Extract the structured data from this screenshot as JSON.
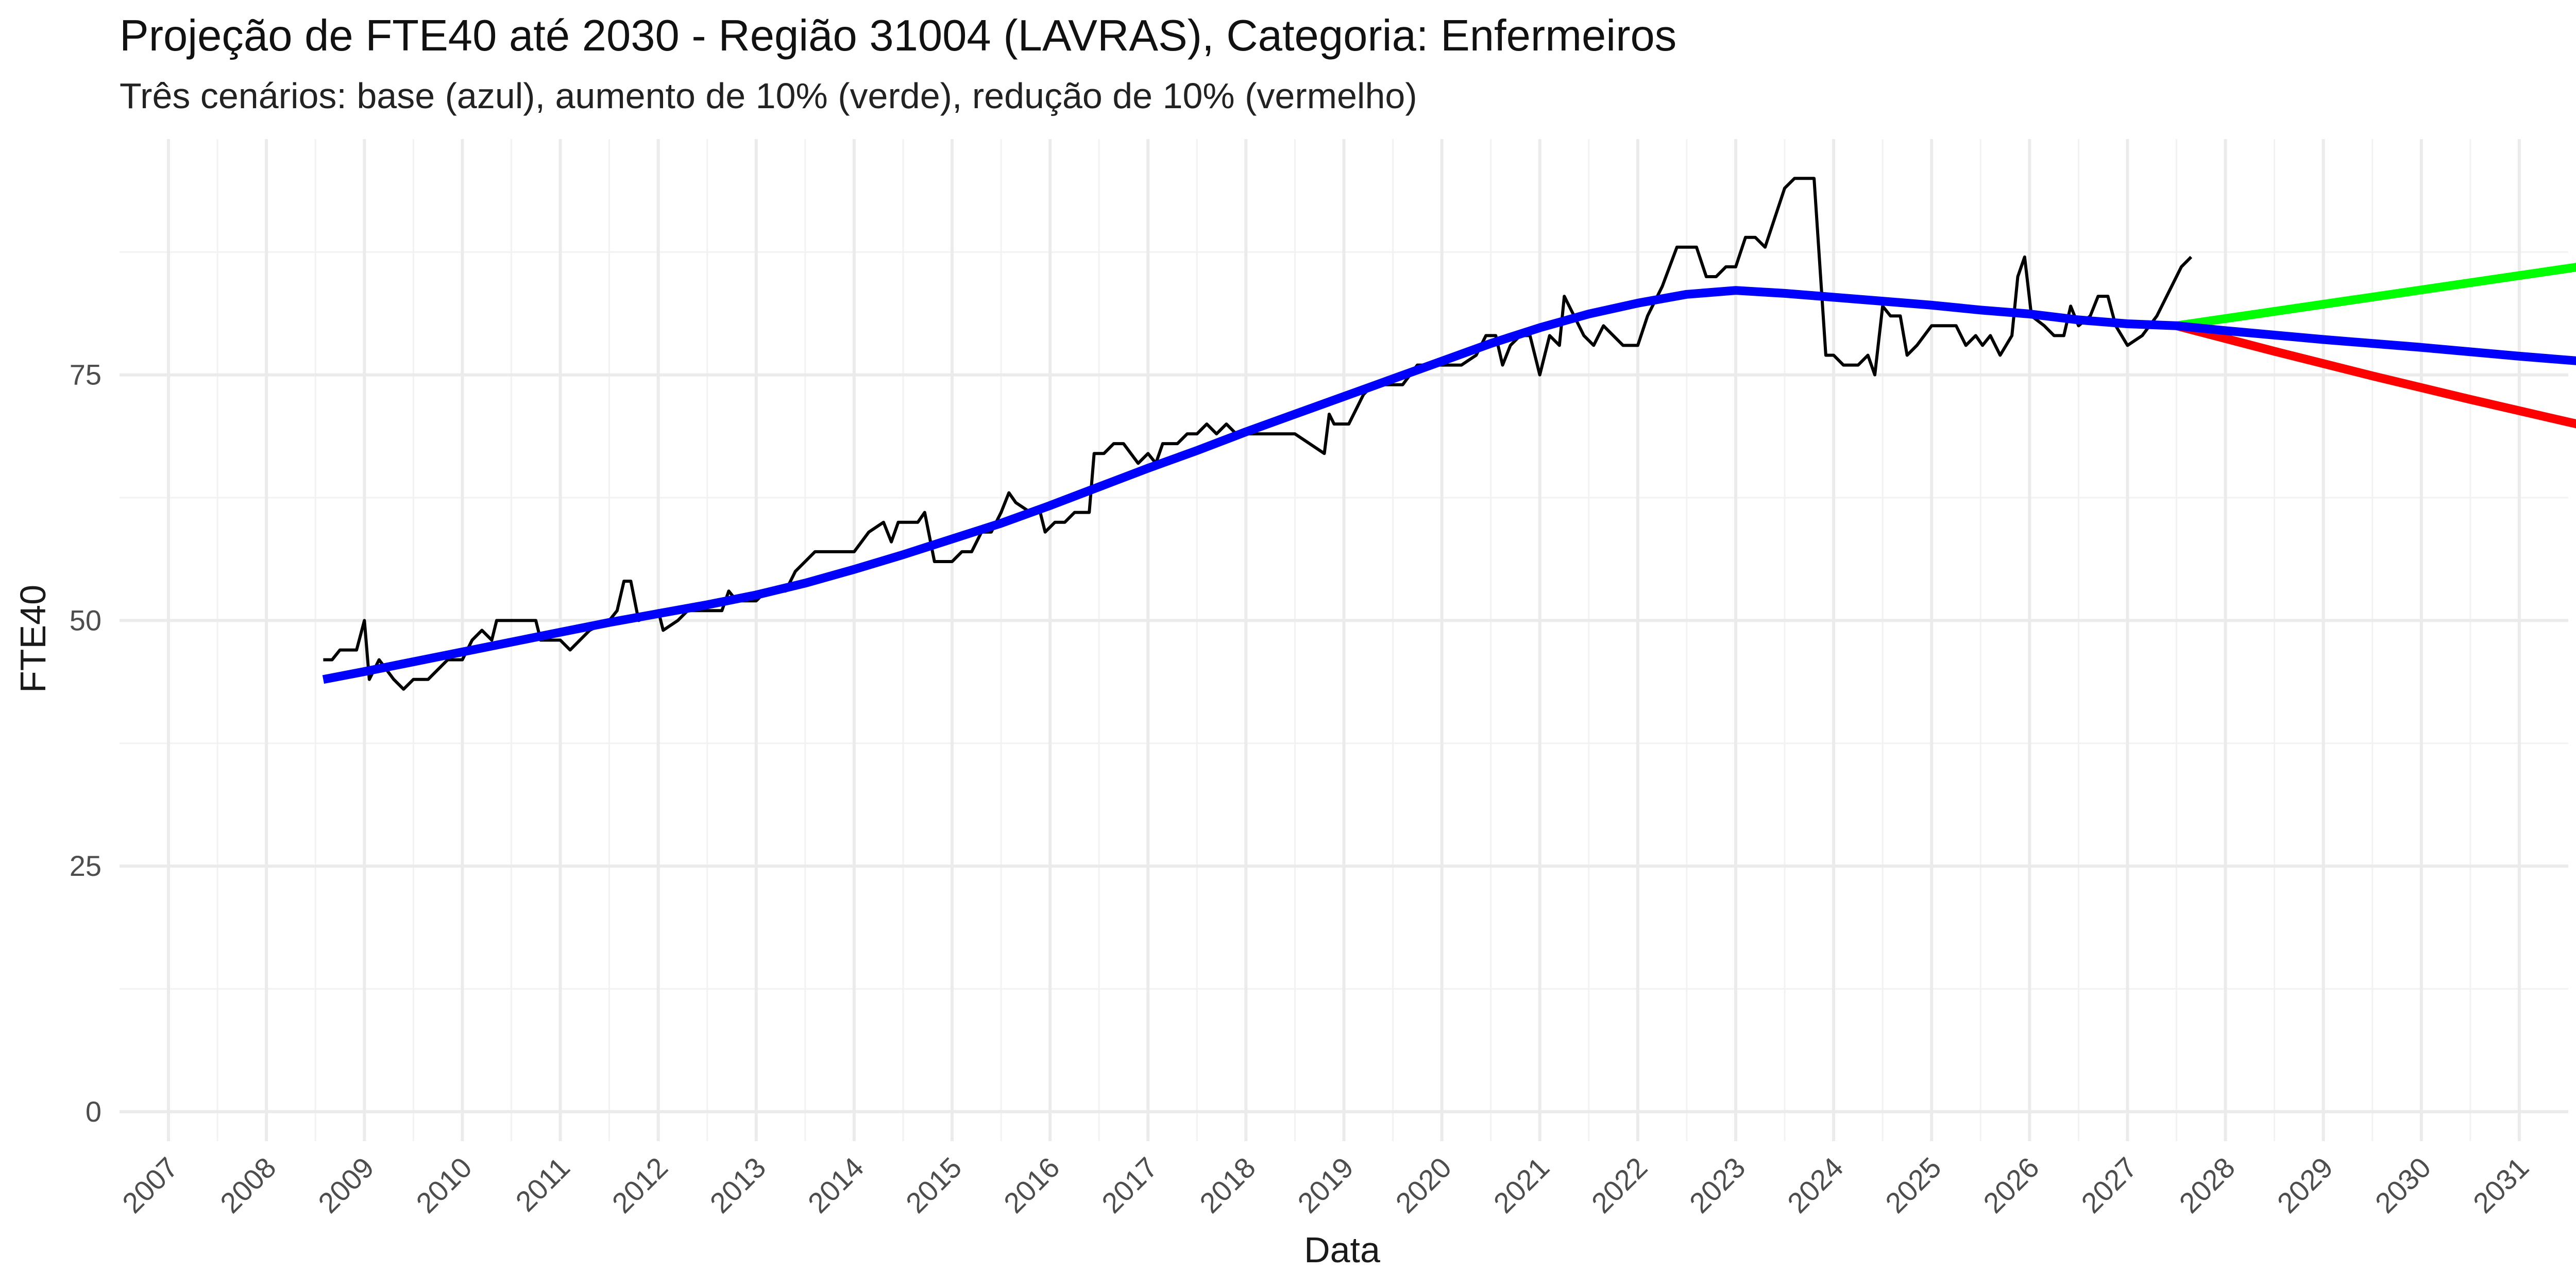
{
  "chart_data": {
    "type": "line",
    "title": "Projeção de FTE40 até 2030 - Região 31004 (LAVRAS), Categoria: Enfermeiros",
    "subtitle": "Três cenários: base (azul), aumento de 10% (verde), redução de 10% (vermelho)",
    "xlabel": "Data",
    "ylabel": "FTE40",
    "xlim": [
      2006.5,
      2031.5
    ],
    "ylim": [
      -3,
      99
    ],
    "x_ticks": [
      2007,
      2008,
      2009,
      2010,
      2011,
      2012,
      2013,
      2014,
      2015,
      2016,
      2017,
      2018,
      2019,
      2020,
      2021,
      2022,
      2023,
      2024,
      2025,
      2026,
      2027,
      2028,
      2029,
      2030,
      2031
    ],
    "y_ticks": [
      0,
      25,
      50,
      75
    ],
    "grid": true,
    "legend": "none",
    "series": [
      {
        "key": "observed",
        "color": "#000000",
        "points": [
          [
            2008.58,
            46
          ],
          [
            2008.67,
            46
          ],
          [
            2008.75,
            47
          ],
          [
            2008.92,
            47
          ],
          [
            2009.0,
            50
          ],
          [
            2009.05,
            44
          ],
          [
            2009.15,
            46
          ],
          [
            2009.3,
            44
          ],
          [
            2009.4,
            43
          ],
          [
            2009.5,
            44
          ],
          [
            2009.65,
            44
          ],
          [
            2009.85,
            46
          ],
          [
            2010.0,
            46
          ],
          [
            2010.1,
            48
          ],
          [
            2010.2,
            49
          ],
          [
            2010.3,
            48
          ],
          [
            2010.35,
            50
          ],
          [
            2010.75,
            50
          ],
          [
            2010.8,
            48
          ],
          [
            2011.0,
            48
          ],
          [
            2011.1,
            47
          ],
          [
            2011.3,
            49
          ],
          [
            2011.5,
            50
          ],
          [
            2011.58,
            51
          ],
          [
            2011.65,
            54
          ],
          [
            2011.72,
            54
          ],
          [
            2011.8,
            50
          ],
          [
            2012.0,
            51
          ],
          [
            2012.05,
            49
          ],
          [
            2012.2,
            50
          ],
          [
            2012.3,
            51
          ],
          [
            2012.55,
            51
          ],
          [
            2012.65,
            51
          ],
          [
            2012.72,
            53
          ],
          [
            2012.8,
            52
          ],
          [
            2013.0,
            52
          ],
          [
            2013.1,
            53
          ],
          [
            2013.3,
            53
          ],
          [
            2013.4,
            55
          ],
          [
            2013.5,
            56
          ],
          [
            2013.6,
            57
          ],
          [
            2013.9,
            57
          ],
          [
            2014.0,
            57
          ],
          [
            2014.15,
            59
          ],
          [
            2014.3,
            60
          ],
          [
            2014.38,
            58
          ],
          [
            2014.45,
            60
          ],
          [
            2014.65,
            60
          ],
          [
            2014.72,
            61
          ],
          [
            2014.82,
            56
          ],
          [
            2015.0,
            56
          ],
          [
            2015.1,
            57
          ],
          [
            2015.2,
            57
          ],
          [
            2015.3,
            59
          ],
          [
            2015.4,
            59
          ],
          [
            2015.5,
            61
          ],
          [
            2015.58,
            63
          ],
          [
            2015.65,
            62
          ],
          [
            2015.8,
            61
          ],
          [
            2015.9,
            61
          ],
          [
            2015.95,
            59
          ],
          [
            2016.05,
            60
          ],
          [
            2016.15,
            60
          ],
          [
            2016.25,
            61
          ],
          [
            2016.4,
            61
          ],
          [
            2016.45,
            67
          ],
          [
            2016.55,
            67
          ],
          [
            2016.65,
            68
          ],
          [
            2016.75,
            68
          ],
          [
            2016.9,
            66
          ],
          [
            2017.0,
            67
          ],
          [
            2017.08,
            66
          ],
          [
            2017.15,
            68
          ],
          [
            2017.3,
            68
          ],
          [
            2017.4,
            69
          ],
          [
            2017.5,
            69
          ],
          [
            2017.6,
            70
          ],
          [
            2017.7,
            69
          ],
          [
            2017.8,
            70
          ],
          [
            2017.9,
            69
          ],
          [
            2018.0,
            69
          ],
          [
            2018.5,
            69
          ],
          [
            2018.8,
            67
          ],
          [
            2018.85,
            71
          ],
          [
            2018.9,
            70
          ],
          [
            2019.05,
            70
          ],
          [
            2019.2,
            73
          ],
          [
            2019.3,
            74
          ],
          [
            2019.45,
            74
          ],
          [
            2019.6,
            74
          ],
          [
            2019.75,
            76
          ],
          [
            2019.95,
            76
          ],
          [
            2020.1,
            76
          ],
          [
            2020.2,
            76
          ],
          [
            2020.35,
            77
          ],
          [
            2020.45,
            79
          ],
          [
            2020.55,
            79
          ],
          [
            2020.62,
            76
          ],
          [
            2020.7,
            78
          ],
          [
            2020.8,
            79
          ],
          [
            2020.9,
            79
          ],
          [
            2021.0,
            75
          ],
          [
            2021.1,
            79
          ],
          [
            2021.2,
            78
          ],
          [
            2021.25,
            83
          ],
          [
            2021.35,
            81
          ],
          [
            2021.45,
            79
          ],
          [
            2021.55,
            78
          ],
          [
            2021.65,
            80
          ],
          [
            2021.75,
            79
          ],
          [
            2021.85,
            78
          ],
          [
            2022.0,
            78
          ],
          [
            2022.1,
            81
          ],
          [
            2022.25,
            84
          ],
          [
            2022.4,
            88
          ],
          [
            2022.5,
            88
          ],
          [
            2022.6,
            88
          ],
          [
            2022.7,
            85
          ],
          [
            2022.8,
            85
          ],
          [
            2022.9,
            86
          ],
          [
            2023.0,
            86
          ],
          [
            2023.1,
            89
          ],
          [
            2023.2,
            89
          ],
          [
            2023.3,
            88
          ],
          [
            2023.4,
            91
          ],
          [
            2023.5,
            94
          ],
          [
            2023.6,
            95
          ],
          [
            2023.8,
            95
          ],
          [
            2023.92,
            77
          ],
          [
            2024.0,
            77
          ],
          [
            2024.1,
            76
          ],
          [
            2024.25,
            76
          ],
          [
            2024.35,
            77
          ],
          [
            2024.42,
            75
          ],
          [
            2024.5,
            82
          ],
          [
            2024.58,
            81
          ],
          [
            2024.68,
            81
          ],
          [
            2024.75,
            77
          ],
          [
            2024.85,
            78
          ],
          [
            2025.0,
            80
          ],
          [
            2025.25,
            80
          ],
          [
            2025.35,
            78
          ],
          [
            2025.45,
            79
          ],
          [
            2025.52,
            78
          ],
          [
            2025.6,
            79
          ],
          [
            2025.7,
            77
          ],
          [
            2025.82,
            79
          ],
          [
            2025.88,
            85
          ],
          [
            2025.95,
            87
          ],
          [
            2026.02,
            81
          ],
          [
            2026.15,
            80
          ],
          [
            2026.25,
            79
          ],
          [
            2026.35,
            79
          ],
          [
            2026.42,
            82
          ],
          [
            2026.5,
            80
          ],
          [
            2026.62,
            81
          ],
          [
            2026.7,
            83
          ],
          [
            2026.8,
            83
          ],
          [
            2026.88,
            80
          ],
          [
            2027.0,
            78
          ],
          [
            2027.15,
            79
          ],
          [
            2027.3,
            81
          ],
          [
            2027.45,
            84
          ],
          [
            2027.55,
            86
          ],
          [
            2027.65,
            87
          ]
        ]
      },
      {
        "key": "base",
        "color": "#0000ff",
        "points": [
          [
            2008.58,
            44
          ],
          [
            2009.0,
            44.8
          ],
          [
            2009.5,
            45.8
          ],
          [
            2010.0,
            46.8
          ],
          [
            2010.5,
            47.8
          ],
          [
            2011.0,
            48.8
          ],
          [
            2011.5,
            49.8
          ],
          [
            2012.0,
            50.7
          ],
          [
            2012.5,
            51.6
          ],
          [
            2013.0,
            52.6
          ],
          [
            2013.5,
            53.8
          ],
          [
            2014.0,
            55.2
          ],
          [
            2014.5,
            56.7
          ],
          [
            2015.0,
            58.3
          ],
          [
            2015.5,
            59.9
          ],
          [
            2016.0,
            61.7
          ],
          [
            2016.5,
            63.6
          ],
          [
            2017.0,
            65.5
          ],
          [
            2017.5,
            67.3
          ],
          [
            2018.0,
            69.2
          ],
          [
            2018.5,
            71.0
          ],
          [
            2019.0,
            72.8
          ],
          [
            2019.5,
            74.6
          ],
          [
            2020.0,
            76.4
          ],
          [
            2020.5,
            78.2
          ],
          [
            2021.0,
            79.8
          ],
          [
            2021.5,
            81.2
          ],
          [
            2022.0,
            82.3
          ],
          [
            2022.5,
            83.2
          ],
          [
            2023.0,
            83.6
          ],
          [
            2023.5,
            83.3
          ],
          [
            2024.0,
            82.9
          ],
          [
            2024.5,
            82.5
          ],
          [
            2025.0,
            82.1
          ],
          [
            2025.5,
            81.6
          ],
          [
            2026.0,
            81.2
          ],
          [
            2026.5,
            80.6
          ],
          [
            2027.0,
            80.2
          ],
          [
            2027.5,
            80.0
          ],
          [
            2028.0,
            79.5
          ],
          [
            2029.0,
            78.6
          ],
          [
            2030.0,
            77.8
          ],
          [
            2031.0,
            76.9
          ],
          [
            2032.0,
            76.1
          ],
          [
            2032.5,
            75.7
          ]
        ]
      },
      {
        "key": "increase",
        "color": "#00ff00",
        "points": [
          [
            2027.5,
            80.0
          ],
          [
            2032.5,
            87.3
          ]
        ]
      },
      {
        "key": "decrease",
        "color": "#ff0000",
        "points": [
          [
            2027.5,
            80.0
          ],
          [
            2028.5,
            77.4
          ],
          [
            2029.5,
            74.9
          ],
          [
            2030.5,
            72.5
          ],
          [
            2031.5,
            70.2
          ],
          [
            2032.5,
            68.0
          ]
        ]
      }
    ]
  }
}
